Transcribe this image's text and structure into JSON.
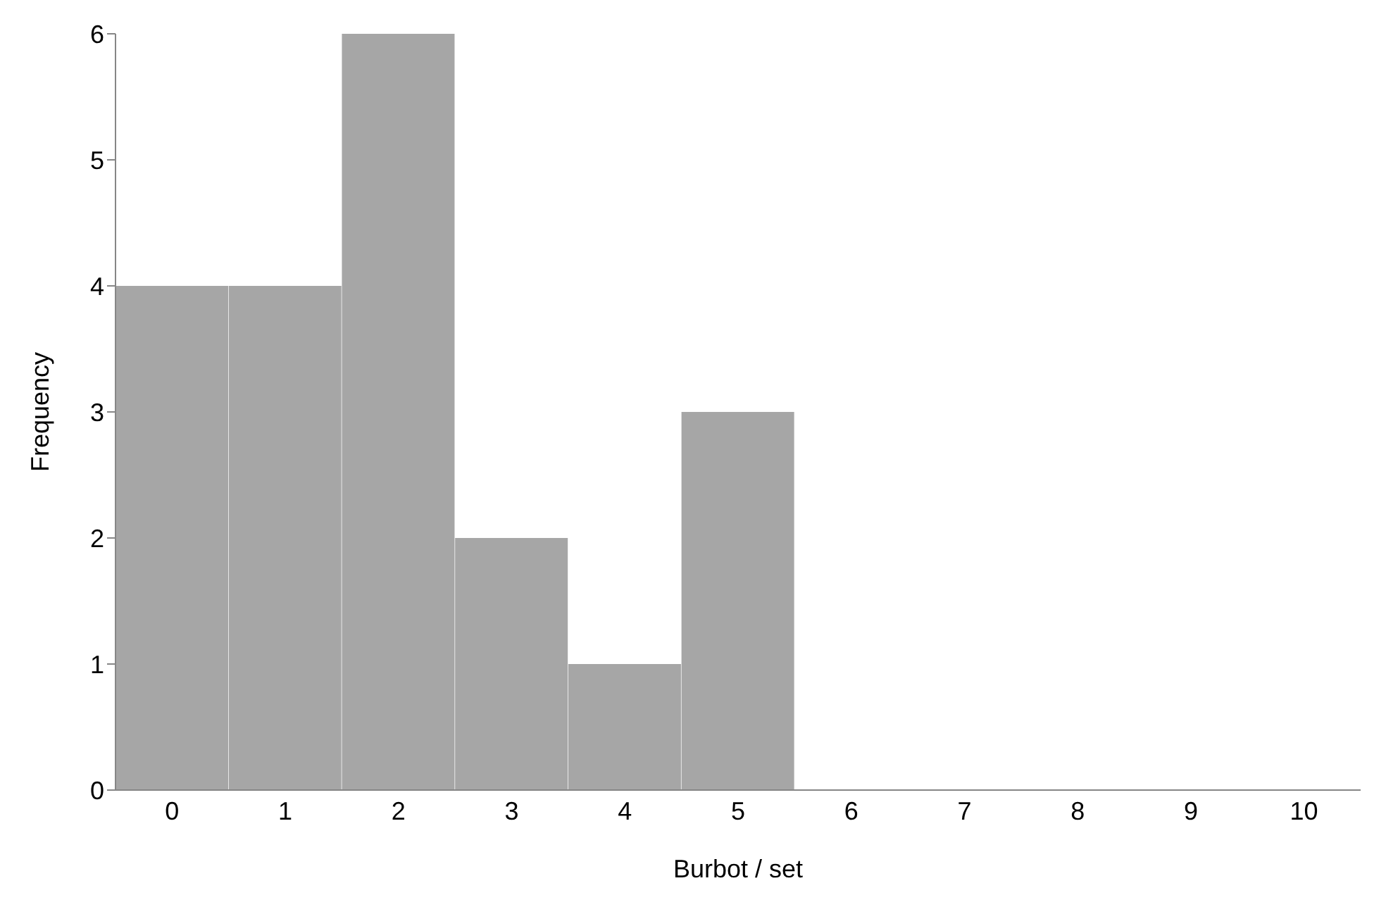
{
  "chart_data": {
    "type": "bar",
    "xlabel": "Burbot / set",
    "ylabel": "Frequency",
    "categories": [
      "0",
      "1",
      "2",
      "3",
      "4",
      "5",
      "6",
      "7",
      "8",
      "9",
      "10"
    ],
    "values": [
      4,
      4,
      6,
      2,
      1,
      3,
      0,
      0,
      0,
      0,
      0
    ],
    "color": "#a6a6a6",
    "ylim": [
      0,
      6
    ],
    "yticks": [
      0,
      1,
      2,
      3,
      4,
      5,
      6
    ],
    "grid": false,
    "legend": false
  }
}
